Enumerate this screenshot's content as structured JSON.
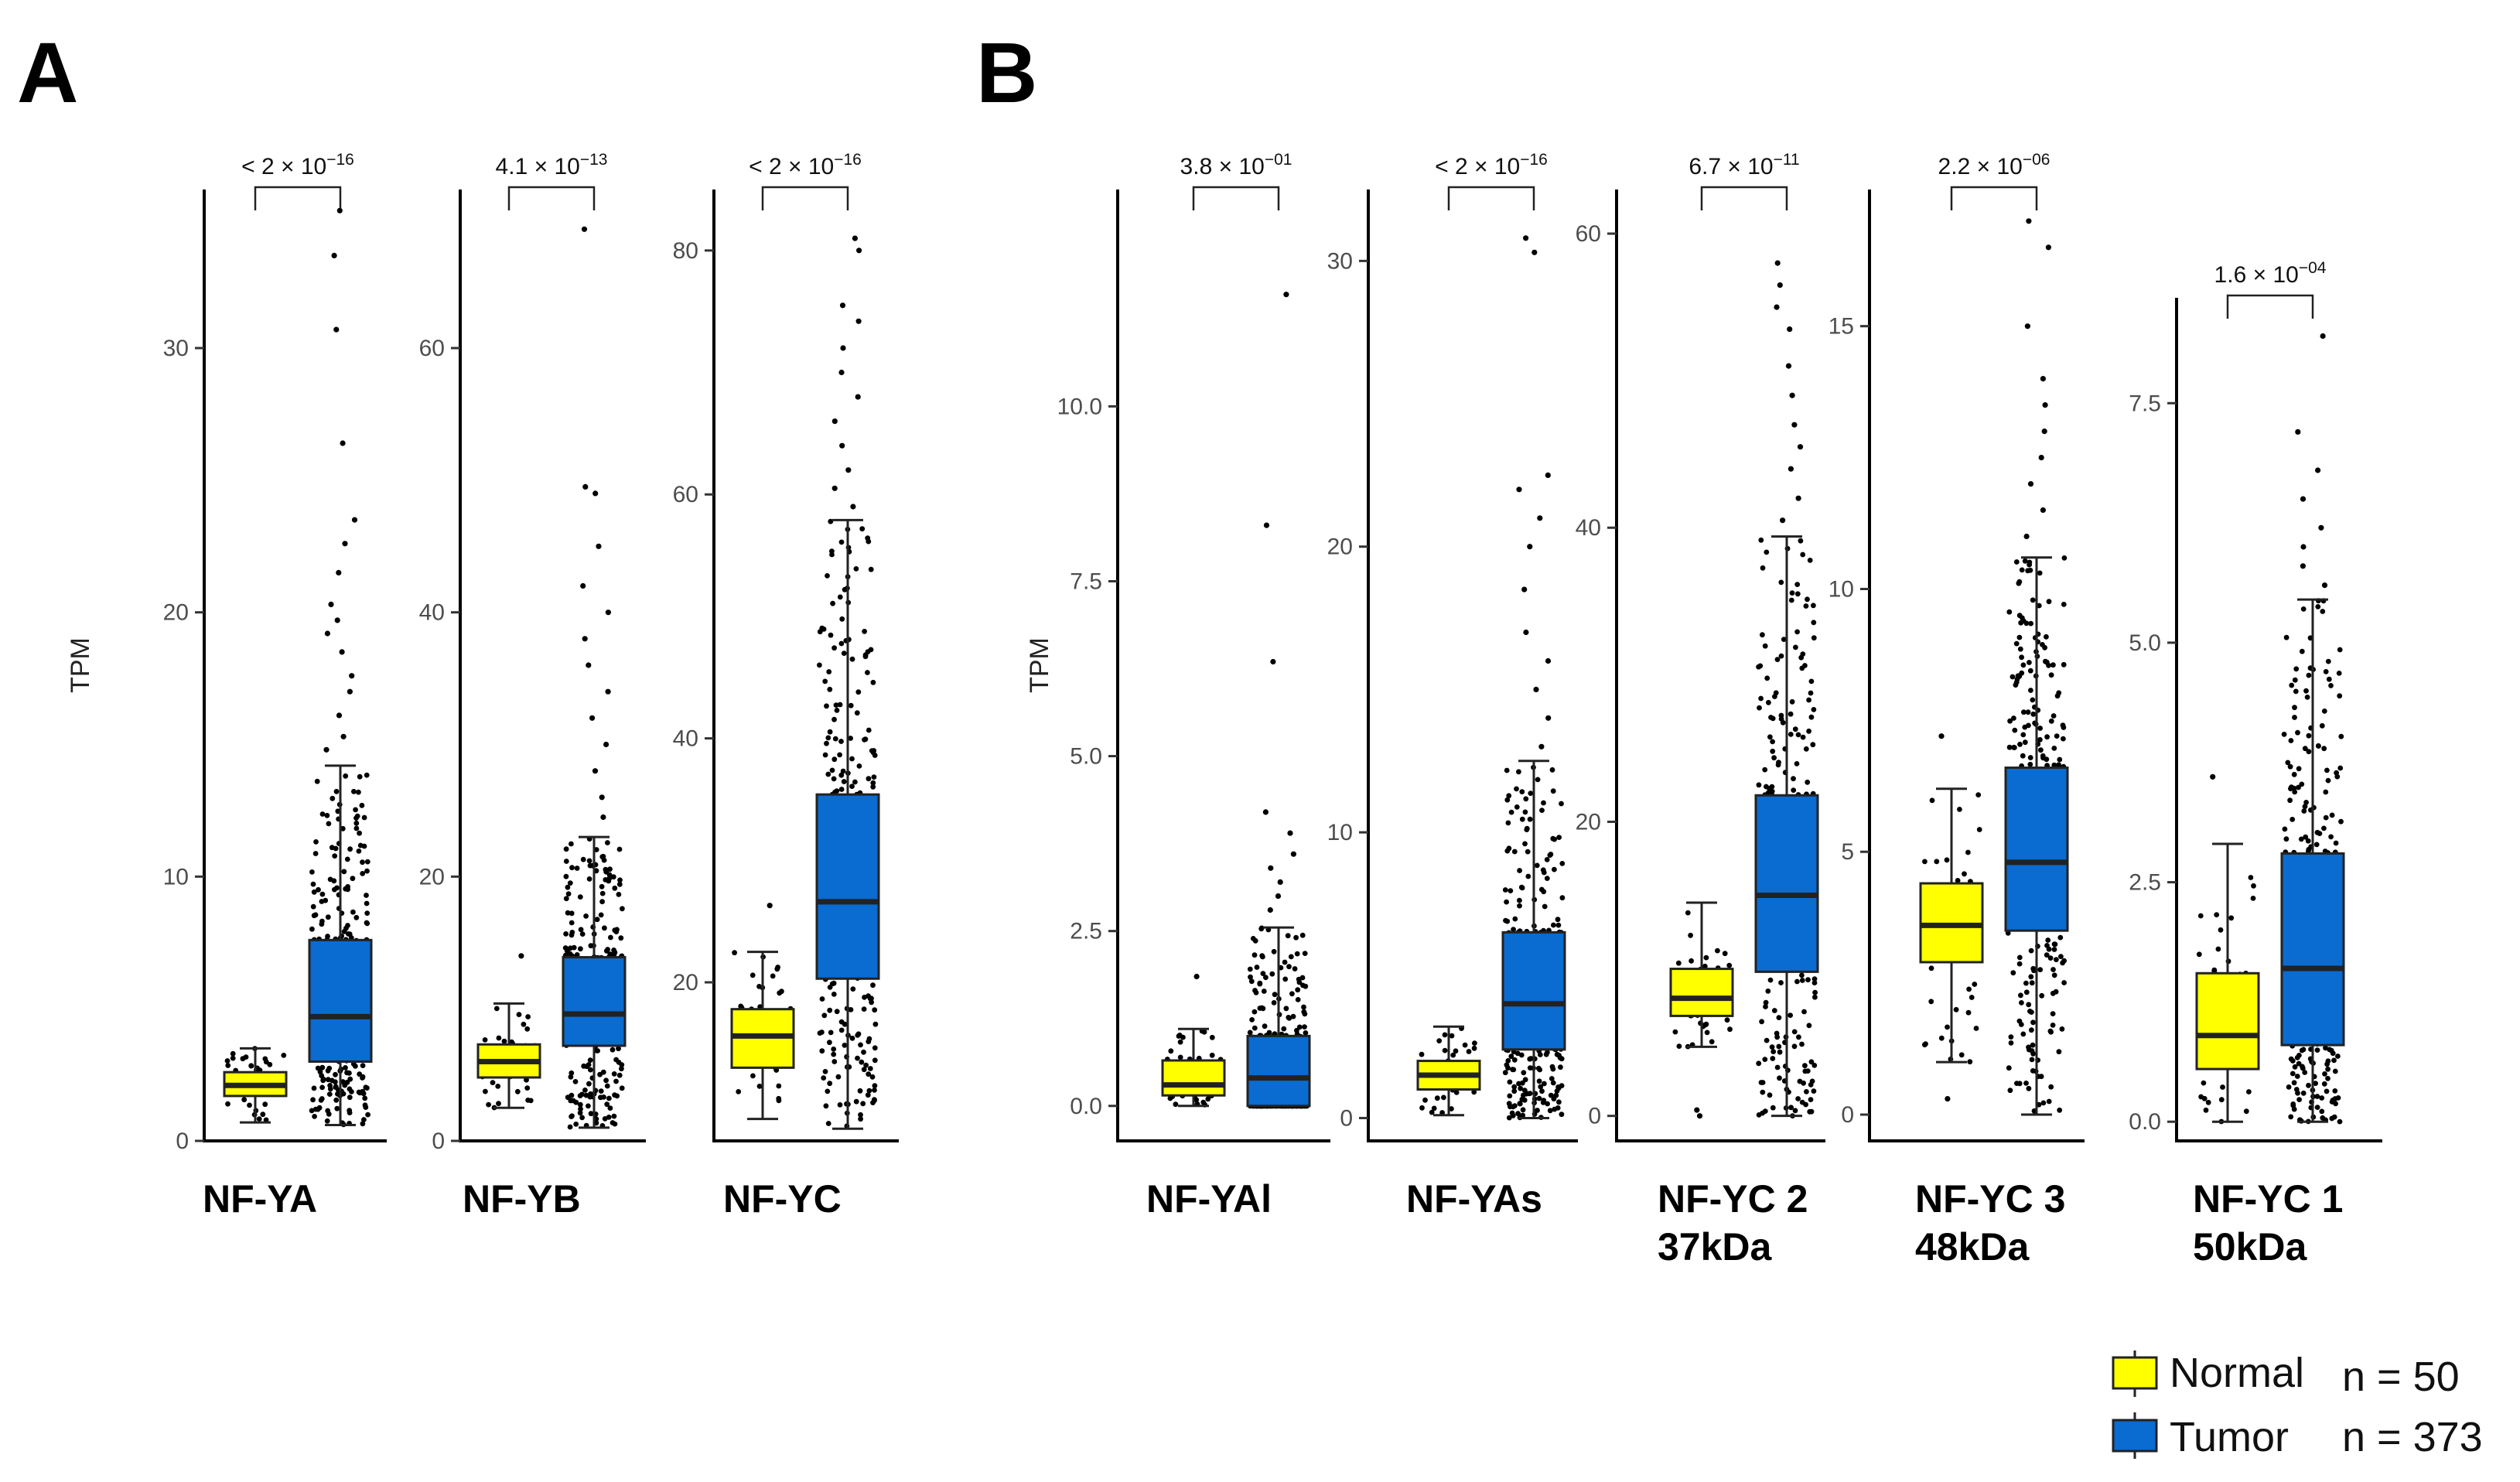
{
  "panel_letters": [
    "A",
    "B"
  ],
  "legend": {
    "normal_label": "Normal",
    "tumor_label": "Tumor",
    "normal_n": "n = 50",
    "tumor_n": "n = 373",
    "normal_color": "#FFFF00",
    "tumor_color": "#0A6BD0"
  },
  "chart_data": [
    {
      "type": "box",
      "panel": "A",
      "title": [
        "NF-YA"
      ],
      "ylabel": "TPM",
      "ylim": [
        0,
        36
      ],
      "yticks": [
        0,
        10,
        20,
        30
      ],
      "ytick_labels": [
        "0",
        "10",
        "20",
        "30"
      ],
      "pvalue": {
        "prefix": "< 2",
        "mantissa": "",
        "exponent": "-16"
      },
      "normal": {
        "q1": 1.7,
        "median": 2.1,
        "q3": 2.6,
        "lo": 0.7,
        "hi": 3.5,
        "outliers": []
      },
      "tumor": {
        "q1": 3.0,
        "median": 4.7,
        "q3": 7.6,
        "lo": 0.6,
        "hi": 14.2,
        "outliers": [
          14.8,
          15.3,
          16.1,
          17.0,
          17.6,
          18.5,
          19.2,
          19.7,
          20.3,
          21.5,
          22.6,
          23.5,
          26.4,
          30.7,
          33.5,
          35.2
        ]
      }
    },
    {
      "type": "box",
      "panel": "A",
      "title": [
        "NF-YB"
      ],
      "ylabel": "",
      "ylim": [
        0,
        72
      ],
      "yticks": [
        0,
        20,
        40,
        60
      ],
      "ytick_labels": [
        "0",
        "20",
        "40",
        "60"
      ],
      "pvalue": {
        "prefix": "",
        "mantissa": "4.1",
        "exponent": "-13"
      },
      "normal": {
        "q1": 4.8,
        "median": 6.0,
        "q3": 7.3,
        "lo": 2.5,
        "hi": 10.4,
        "outliers": [
          14.0
        ]
      },
      "tumor": {
        "q1": 7.2,
        "median": 9.6,
        "q3": 13.9,
        "lo": 1.0,
        "hi": 23.0,
        "outliers": [
          24.5,
          26.0,
          28.0,
          30.0,
          32.0,
          34.0,
          36.0,
          38.0,
          40.0,
          42.0,
          45.0,
          49.5,
          49.0,
          69.0
        ]
      }
    },
    {
      "type": "box",
      "panel": "A",
      "title": [
        "NF-YC"
      ],
      "ylabel": "",
      "ylim": [
        7,
        85
      ],
      "yticks": [
        20,
        40,
        60,
        80
      ],
      "ytick_labels": [
        "20",
        "40",
        "60",
        "80"
      ],
      "pvalue": {
        "prefix": "< 2",
        "mantissa": "",
        "exponent": "-16"
      },
      "normal": {
        "q1": 13.0,
        "median": 15.6,
        "q3": 17.8,
        "lo": 8.8,
        "hi": 22.5,
        "outliers": [
          26.3
        ]
      },
      "tumor": {
        "q1": 20.3,
        "median": 26.6,
        "q3": 35.4,
        "lo": 8.0,
        "hi": 57.9,
        "outliers": [
          59.0,
          60.5,
          62.0,
          64.0,
          66.0,
          68.0,
          70.0,
          72.0,
          74.2,
          75.5,
          80.0,
          81.0
        ]
      }
    },
    {
      "type": "box",
      "panel": "B",
      "title": [
        "NF-YAl"
      ],
      "ylabel": "TPM",
      "ylim": [
        -0.5,
        13.1
      ],
      "yticks": [
        0,
        2.5,
        5,
        7.5,
        10
      ],
      "ytick_labels": [
        "0.0",
        "2.5",
        "5.0",
        "7.5",
        "10.0"
      ],
      "pvalue": {
        "prefix": "",
        "mantissa": "3.8",
        "exponent": "-01"
      },
      "normal": {
        "q1": 0.15,
        "median": 0.3,
        "q3": 0.65,
        "lo": 0.0,
        "hi": 1.1,
        "outliers": [
          1.85
        ]
      },
      "tumor": {
        "q1": 0.0,
        "median": 0.4,
        "q3": 1.0,
        "lo": 0.0,
        "hi": 2.55,
        "outliers": [
          2.8,
          3.0,
          3.2,
          3.4,
          3.6,
          3.9,
          4.2,
          6.35,
          8.3,
          11.6
        ]
      }
    },
    {
      "type": "box",
      "panel": "B",
      "title": [
        "NF-YAs"
      ],
      "ylabel": "",
      "ylim": [
        -0.8,
        32.5
      ],
      "yticks": [
        0,
        10,
        20,
        30
      ],
      "ytick_labels": [
        "0",
        "10",
        "20",
        "30"
      ],
      "pvalue": {
        "prefix": "< 2",
        "mantissa": "",
        "exponent": "-16"
      },
      "normal": {
        "q1": 1.0,
        "median": 1.5,
        "q3": 2.0,
        "lo": 0.1,
        "hi": 3.2,
        "outliers": []
      },
      "tumor": {
        "q1": 2.4,
        "median": 4.0,
        "q3": 6.5,
        "lo": 0.0,
        "hi": 12.5,
        "outliers": [
          13.0,
          14.0,
          15.0,
          16.0,
          17.0,
          18.5,
          20.0,
          21.0,
          22.0,
          22.5,
          30.3,
          30.8
        ]
      }
    },
    {
      "type": "box",
      "panel": "B",
      "title": [
        "NF-YC 2",
        "37kDa"
      ],
      "ylabel": "",
      "ylim": [
        -1.7,
        63
      ],
      "yticks": [
        0,
        20,
        40,
        60
      ],
      "ytick_labels": [
        "0",
        "20",
        "40",
        "60"
      ],
      "pvalue": {
        "prefix": "",
        "mantissa": "6.7",
        "exponent": "-11"
      },
      "normal": {
        "q1": 6.8,
        "median": 8.0,
        "q3": 10.0,
        "lo": 4.7,
        "hi": 14.5,
        "outliers": [
          0.0,
          0.4
        ]
      },
      "tumor": {
        "q1": 9.8,
        "median": 15.0,
        "q3": 21.8,
        "lo": 0.0,
        "hi": 39.4,
        "outliers": [
          40.5,
          42.0,
          44.0,
          45.5,
          47.0,
          49.0,
          51.0,
          53.5,
          55.0,
          56.5,
          58.0
        ]
      }
    },
    {
      "type": "box",
      "panel": "B",
      "title": [
        "NF-YC 3",
        "48kDa"
      ],
      "ylabel": "",
      "ylim": [
        -0.5,
        17.6
      ],
      "yticks": [
        0,
        5,
        10,
        15
      ],
      "ytick_labels": [
        "0",
        "5",
        "10",
        "15"
      ],
      "pvalue": {
        "prefix": "",
        "mantissa": "2.2",
        "exponent": "-06"
      },
      "normal": {
        "q1": 2.9,
        "median": 3.6,
        "q3": 4.4,
        "lo": 1.0,
        "hi": 6.2,
        "outliers": [
          0.3,
          7.2
        ]
      },
      "tumor": {
        "q1": 3.5,
        "median": 4.8,
        "q3": 6.6,
        "lo": 0.0,
        "hi": 10.6,
        "outliers": [
          11.0,
          11.5,
          12.0,
          12.5,
          13.0,
          13.5,
          14.0,
          15.0,
          16.5,
          17.0
        ]
      }
    },
    {
      "type": "box",
      "panel": "B",
      "title": [
        "NF-YC 1",
        "50kDa"
      ],
      "ylabel": "",
      "ylim": [
        -0.2,
        8.6
      ],
      "yticks": [
        0,
        2.5,
        5,
        7.5
      ],
      "ytick_labels": [
        "0.0",
        "2.5",
        "5.0",
        "7.5"
      ],
      "pvalue": {
        "prefix": "",
        "mantissa": "1.6",
        "exponent": "-04"
      },
      "normal": {
        "q1": 0.55,
        "median": 0.9,
        "q3": 1.55,
        "lo": 0.0,
        "hi": 2.9,
        "outliers": [
          3.6
        ]
      },
      "tumor": {
        "q1": 0.8,
        "median": 1.6,
        "q3": 2.8,
        "lo": 0.0,
        "hi": 5.45,
        "outliers": [
          5.6,
          5.8,
          6.0,
          6.2,
          6.5,
          6.8,
          7.2,
          8.2
        ]
      }
    }
  ]
}
